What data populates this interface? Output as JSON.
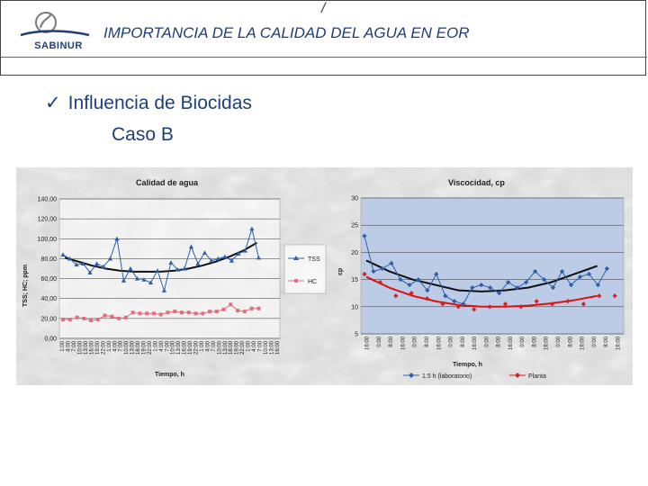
{
  "header": {
    "mark": "/",
    "title": "IMPORTANCIA DE LA CALIDAD DEL AGUA EN EOR",
    "logo_text": "SABINUR"
  },
  "content": {
    "bullet_check": "✓",
    "bullet": "Influencia de Biocidas",
    "case": "Caso B"
  },
  "colors": {
    "title_blue": "#1f3f78",
    "series_blue": "#2f5fa8",
    "series_pink": "#e07080",
    "series_red": "#d62020",
    "trend_black": "#111111",
    "trend_red": "#e01010",
    "plot_blue": "#bccbe6",
    "marble": "#dcdcdc"
  },
  "chart_data": [
    {
      "type": "line",
      "title": "Calidad de agua",
      "xlabel": "Tiempo, h",
      "ylabel": "TSS; HC; ppm",
      "ylim": [
        0,
        140
      ],
      "yticks": [
        "0,00",
        "20,00",
        "40,00",
        "60,00",
        "80,00",
        "100,00",
        "120,00",
        "140,00"
      ],
      "grid": true,
      "legend": "right",
      "x_count": 38,
      "x_tick_labels": [
        "1:00",
        "4:00",
        "7:00",
        "10:00",
        "13:00",
        "16:00",
        "19:00",
        "22:00",
        "1:00",
        "4:00",
        "7:00",
        "10:00",
        "13:00",
        "16:00",
        "19:00",
        "22:00",
        "1:00",
        "4:00",
        "7:00",
        "10:00",
        "13:00",
        "16:00",
        "19:00",
        "22:00",
        "1:00",
        "4:00",
        "7:00",
        "10:00",
        "13:00",
        "16:00",
        "19:00",
        "22:00",
        "1:00",
        "4:00",
        "7:00",
        "10:00",
        "13:00",
        "16:00"
      ],
      "series": [
        {
          "name": "TSS",
          "color": "#2f5fa8",
          "marker": "triangle",
          "values": [
            84,
            80,
            74,
            75,
            66,
            75,
            72,
            80,
            100,
            58,
            70,
            60,
            59,
            56,
            68,
            48,
            76,
            69,
            70,
            92,
            75,
            86,
            78,
            80,
            82,
            78,
            85,
            88,
            110,
            81
          ]
        },
        {
          "name": "HC",
          "color": "#e07080",
          "marker": "square",
          "values": [
            19,
            19,
            21,
            20,
            18,
            19,
            23,
            22,
            20,
            21,
            26,
            25,
            25,
            25,
            24,
            26,
            27,
            26,
            26,
            25,
            25,
            27,
            27,
            29,
            34,
            28,
            27,
            30,
            30
          ]
        }
      ],
      "trendline": {
        "color": "#111111",
        "values": [
          81,
          77,
          73,
          70,
          68,
          67,
          67,
          67,
          68,
          70,
          73,
          77,
          82,
          88,
          96
        ]
      }
    },
    {
      "type": "line",
      "title": "Viscocidad, cp",
      "xlabel": "Tiempo, h",
      "ylabel": "cp",
      "ylim": [
        5,
        30
      ],
      "yticks": [
        "5",
        "10",
        "15",
        "20",
        "25",
        "30"
      ],
      "grid": true,
      "legend": "bottom",
      "x_count": 22,
      "x_tick_labels": [
        "16:00",
        "0:00",
        "8:00",
        "16:00",
        "0:00",
        "8:00",
        "16:00",
        "0:00",
        "8:00",
        "16:00",
        "0:00",
        "8:00",
        "16:00",
        "0:00",
        "8:00",
        "16:00",
        "0:00",
        "8:00",
        "16:00",
        "0:00",
        "8:00",
        "16:00"
      ],
      "series": [
        {
          "name": "1.5 h (laboratorio)",
          "color": "#2f5fa8",
          "marker": "diamond",
          "values": [
            23,
            16.5,
            17,
            18,
            15,
            14,
            15,
            13,
            16,
            12,
            11,
            10.5,
            13.5,
            14,
            13.5,
            12.5,
            14.5,
            13.5,
            14.5,
            16.5,
            15,
            13.5,
            16.5,
            14,
            15.5,
            16,
            14,
            17
          ]
        },
        {
          "name": "Planta",
          "color": "#d62020",
          "marker": "diamond",
          "values": [
            16,
            14.5,
            12,
            12.5,
            11.5,
            10.5,
            10,
            9.5,
            10,
            10.5,
            10,
            11,
            10.5,
            11,
            10.5,
            12,
            12
          ]
        }
      ],
      "trendlines": [
        {
          "color": "#111111",
          "values": [
            18.5,
            16.5,
            15,
            14,
            13,
            12.8,
            13,
            13.5,
            14.5,
            16,
            17.5
          ]
        },
        {
          "color": "#e01010",
          "values": [
            15.5,
            13.5,
            12,
            11,
            10.3,
            10,
            10,
            10.2,
            10.6,
            11.2,
            12
          ]
        }
      ]
    }
  ]
}
